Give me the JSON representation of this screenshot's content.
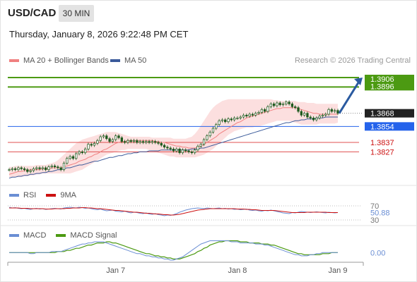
{
  "header": {
    "symbol": "USD/CAD",
    "timeframe": "30 MIN",
    "timestamp": "Thursday, January 8, 2026 9:22:48 PM CET"
  },
  "legend": {
    "ma20_label": "MA 20 + Bollinger Bands",
    "ma50_label": "MA 50",
    "credit": "Research © 2026 Trading Central"
  },
  "colors": {
    "ma20": "#f08080",
    "ma50": "#3a5a9a",
    "bollinger_fill": "#fbd9d9",
    "candle": "#1e5a1e",
    "target_line": "#4c9a12",
    "pivot_line": "#2563eb",
    "support_line": "#e05050",
    "rsi": "#6a8ed4",
    "rsi_ma": "#cc1111",
    "macd": "#6a8ed4",
    "macd_signal": "#4c9a12",
    "arrow": "#2a5aa0"
  },
  "chart_data": [
    {
      "type": "candlestick",
      "name": "price",
      "x_ticks": [
        "Jan 7",
        "Jan 8",
        "Jan 9"
      ],
      "ylim": [
        1.3795,
        1.3912
      ],
      "levels": [
        {
          "value": 1.3906,
          "label": "1.3906",
          "kind": "target"
        },
        {
          "value": 1.3896,
          "label": "1.3896",
          "kind": "target"
        },
        {
          "value": 1.3868,
          "label": "1.3868",
          "kind": "last"
        },
        {
          "value": 1.3854,
          "label": "1.3854",
          "kind": "pivot"
        },
        {
          "value": 1.3837,
          "label": "1.3837",
          "kind": "support"
        },
        {
          "value": 1.3827,
          "label": "1.3827",
          "kind": "support"
        }
      ],
      "close": [
        1.3808,
        1.3809,
        1.3808,
        1.381,
        1.3809,
        1.3808,
        1.3806,
        1.3807,
        1.3809,
        1.381,
        1.3809,
        1.381,
        1.3808,
        1.3811,
        1.3812,
        1.3811,
        1.381,
        1.3808,
        1.3815,
        1.382,
        1.3822,
        1.382,
        1.3825,
        1.3827,
        1.3826,
        1.383,
        1.3835,
        1.3834,
        1.3836,
        1.3839,
        1.3843,
        1.3844,
        1.3841,
        1.3838,
        1.384,
        1.3844,
        1.3842,
        1.3838,
        1.3837,
        1.3839,
        1.3838,
        1.3839,
        1.3837,
        1.3838,
        1.3837,
        1.3838,
        1.3837,
        1.3838,
        1.3837,
        1.3836,
        1.3834,
        1.3832,
        1.3831,
        1.383,
        1.3828,
        1.383,
        1.3826,
        1.3829,
        1.3828,
        1.3827,
        1.3826,
        1.3829,
        1.3833,
        1.3835,
        1.384,
        1.3844,
        1.3848,
        1.3852,
        1.3856,
        1.386,
        1.3861,
        1.3859,
        1.3862,
        1.3861,
        1.3863,
        1.3863,
        1.3864,
        1.3866,
        1.3865,
        1.3867,
        1.3866,
        1.3868,
        1.3869,
        1.3872,
        1.387,
        1.3875,
        1.3878,
        1.3876,
        1.3879,
        1.3877,
        1.3878,
        1.388,
        1.3878,
        1.3875,
        1.3874,
        1.387,
        1.3866,
        1.3868,
        1.3864,
        1.3863,
        1.3861,
        1.3863,
        1.3865,
        1.3866,
        1.3867,
        1.3872,
        1.387,
        1.3871,
        1.3868
      ],
      "ma20": [
        1.3803,
        1.3804,
        1.3805,
        1.3806,
        1.3806,
        1.3807,
        1.3807,
        1.3808,
        1.3808,
        1.3808,
        1.3808,
        1.3809,
        1.3809,
        1.3809,
        1.381,
        1.381,
        1.381,
        1.381,
        1.3811,
        1.3812,
        1.3813,
        1.3814,
        1.3815,
        1.3817,
        1.3818,
        1.3819,
        1.3821,
        1.3822,
        1.3824,
        1.3825,
        1.3827,
        1.3829,
        1.383,
        1.3832,
        1.3834,
        1.3836,
        1.3837,
        1.3838,
        1.3838,
        1.3839,
        1.3839,
        1.3839,
        1.3839,
        1.3839,
        1.3839,
        1.3839,
        1.3839,
        1.3839,
        1.3838,
        1.3838,
        1.3837,
        1.3837,
        1.3836,
        1.3835,
        1.3834,
        1.3833,
        1.3833,
        1.3832,
        1.3832,
        1.3831,
        1.3831,
        1.3831,
        1.3832,
        1.3833,
        1.3835,
        1.3837,
        1.3839,
        1.3841,
        1.3843,
        1.3846,
        1.3848,
        1.385,
        1.3852,
        1.3854,
        1.3856,
        1.3858,
        1.3859,
        1.3861,
        1.3863,
        1.3864,
        1.3865,
        1.3866,
        1.3867,
        1.3868,
        1.3869,
        1.387,
        1.3871,
        1.3872,
        1.3873,
        1.3873,
        1.3874,
        1.3874,
        1.3874,
        1.3874,
        1.3874,
        1.3873,
        1.3872,
        1.3871,
        1.387,
        1.3869,
        1.3868,
        1.3868,
        1.3867,
        1.3867,
        1.3867,
        1.3867,
        1.3867,
        1.3867,
        1.3867
      ],
      "ma50": [
        1.3799,
        1.38,
        1.38,
        1.3801,
        1.3801,
        1.3802,
        1.3802,
        1.3803,
        1.3803,
        1.3804,
        1.3804,
        1.3805,
        1.3805,
        1.3806,
        1.3806,
        1.3807,
        1.3808,
        1.3808,
        1.3809,
        1.381,
        1.381,
        1.3811,
        1.3812,
        1.3813,
        1.3813,
        1.3814,
        1.3815,
        1.3816,
        1.3817,
        1.3817,
        1.3818,
        1.3819,
        1.382,
        1.3821,
        1.3821,
        1.3822,
        1.3823,
        1.3823,
        1.3824,
        1.3825,
        1.3825,
        1.3826,
        1.3826,
        1.3827,
        1.3827,
        1.3827,
        1.3828,
        1.3828,
        1.3828,
        1.3828,
        1.3829,
        1.3829,
        1.3829,
        1.3829,
        1.3829,
        1.3829,
        1.3829,
        1.3829,
        1.3829,
        1.3829,
        1.383,
        1.383,
        1.383,
        1.3831,
        1.3831,
        1.3832,
        1.3833,
        1.3834,
        1.3835,
        1.3836,
        1.3837,
        1.3838,
        1.3839,
        1.384,
        1.3841,
        1.3842,
        1.3843,
        1.3844,
        1.3845,
        1.3846,
        1.3847,
        1.3848,
        1.3849,
        1.385,
        1.3851,
        1.3852,
        1.3853,
        1.3854,
        1.3855,
        1.3856,
        1.3857,
        1.3858,
        1.3858,
        1.3859,
        1.386,
        1.386,
        1.3861,
        1.3861,
        1.3862,
        1.3862,
        1.3862,
        1.3863,
        1.3863,
        1.3863,
        1.3864,
        1.3864,
        1.3864,
        1.3864,
        1.3864
      ],
      "bb_upper": [
        1.3811,
        1.3811,
        1.3812,
        1.3812,
        1.3812,
        1.3812,
        1.3812,
        1.3812,
        1.3812,
        1.3813,
        1.3813,
        1.3813,
        1.3813,
        1.3814,
        1.3815,
        1.3816,
        1.3818,
        1.3821,
        1.3824,
        1.3827,
        1.383,
        1.3833,
        1.3836,
        1.3838,
        1.384,
        1.3841,
        1.3842,
        1.3843,
        1.3844,
        1.3845,
        1.3846,
        1.3847,
        1.3848,
        1.3848,
        1.3848,
        1.3848,
        1.3847,
        1.3846,
        1.3845,
        1.3844,
        1.3843,
        1.3843,
        1.3843,
        1.3843,
        1.3843,
        1.3843,
        1.3843,
        1.3842,
        1.3842,
        1.3842,
        1.3842,
        1.3842,
        1.3842,
        1.3842,
        1.3841,
        1.3841,
        1.3841,
        1.3841,
        1.3841,
        1.3842,
        1.3843,
        1.3846,
        1.385,
        1.3855,
        1.386,
        1.3865,
        1.387,
        1.3874,
        1.3877,
        1.3879,
        1.3881,
        1.3882,
        1.3883,
        1.3883,
        1.3883,
        1.3883,
        1.3883,
        1.3883,
        1.3883,
        1.3883,
        1.3883,
        1.3883,
        1.3883,
        1.3883,
        1.3883,
        1.3883,
        1.3883,
        1.3882,
        1.3882,
        1.3881,
        1.3881,
        1.3881,
        1.3881,
        1.3881,
        1.3881,
        1.388,
        1.388,
        1.388,
        1.3879,
        1.3879,
        1.3879,
        1.3878,
        1.3878,
        1.3878,
        1.3878,
        1.3878,
        1.3878,
        1.3878,
        1.3878
      ],
      "bb_lower": [
        1.38,
        1.38,
        1.38,
        1.38,
        1.38,
        1.3801,
        1.3801,
        1.3802,
        1.3802,
        1.3803,
        1.3803,
        1.3804,
        1.3804,
        1.3804,
        1.3804,
        1.3804,
        1.3804,
        1.3804,
        1.3804,
        1.3804,
        1.3804,
        1.3805,
        1.3806,
        1.3807,
        1.3808,
        1.381,
        1.3812,
        1.3814,
        1.3816,
        1.3818,
        1.382,
        1.3822,
        1.3824,
        1.3825,
        1.3826,
        1.3827,
        1.3828,
        1.3829,
        1.3829,
        1.383,
        1.383,
        1.383,
        1.383,
        1.383,
        1.383,
        1.383,
        1.3829,
        1.3828,
        1.3827,
        1.3826,
        1.3825,
        1.3824,
        1.3823,
        1.3822,
        1.3822,
        1.3821,
        1.3821,
        1.3821,
        1.3821,
        1.3821,
        1.3821,
        1.3821,
        1.3822,
        1.3823,
        1.3824,
        1.3826,
        1.3828,
        1.383,
        1.3833,
        1.3836,
        1.3839,
        1.3842,
        1.3845,
        1.3847,
        1.3849,
        1.385,
        1.3851,
        1.3852,
        1.3853,
        1.3853,
        1.3853,
        1.3854,
        1.3854,
        1.3855,
        1.3856,
        1.3857,
        1.3858,
        1.3859,
        1.386,
        1.386,
        1.386,
        1.386,
        1.386,
        1.3859,
        1.3858,
        1.3857,
        1.3856,
        1.3856,
        1.3856,
        1.3856,
        1.3856,
        1.3856,
        1.3857,
        1.3857,
        1.3857,
        1.3857,
        1.3857,
        1.3857,
        1.3858
      ]
    },
    {
      "type": "line",
      "name": "rsi",
      "title": "RSI",
      "ylim": [
        30,
        70
      ],
      "y_ticks": [
        30,
        70
      ],
      "last_value": 50.88,
      "series": [
        {
          "name": "RSI",
          "values": [
            66,
            64,
            65,
            63,
            62,
            63,
            61,
            60,
            62,
            63,
            61,
            62,
            60,
            61,
            62,
            63,
            62,
            61,
            64,
            65,
            66,
            65,
            64,
            66,
            65,
            63,
            64,
            62,
            60,
            59,
            61,
            58,
            56,
            57,
            58,
            55,
            54,
            53,
            55,
            52,
            50,
            52,
            51,
            49,
            48,
            50,
            47,
            46,
            48,
            45,
            44,
            42,
            44,
            43,
            45,
            48,
            52,
            55,
            58,
            60,
            62,
            63,
            64,
            63,
            62,
            64,
            63,
            62,
            63,
            64,
            62,
            63,
            61,
            62,
            60,
            61,
            59,
            60,
            61,
            58,
            57,
            58,
            56,
            55,
            57,
            56,
            58,
            56,
            54,
            52,
            50,
            49,
            48,
            51,
            50,
            52,
            54,
            53,
            52,
            51,
            52,
            53,
            52,
            51,
            50,
            52,
            51,
            50,
            51
          ]
        },
        {
          "name": "9MA",
          "values": [
            64,
            64,
            64,
            64,
            63,
            63,
            63,
            62,
            62,
            62,
            62,
            62,
            61,
            61,
            61,
            62,
            62,
            62,
            62,
            63,
            63,
            64,
            64,
            64,
            65,
            65,
            64,
            64,
            63,
            62,
            62,
            61,
            60,
            59,
            58,
            57,
            57,
            56,
            55,
            54,
            53,
            52,
            52,
            51,
            50,
            49,
            49,
            48,
            47,
            47,
            46,
            45,
            45,
            44,
            44,
            45,
            46,
            48,
            50,
            52,
            54,
            56,
            58,
            59,
            60,
            61,
            62,
            62,
            62,
            62,
            62,
            62,
            62,
            62,
            62,
            61,
            61,
            61,
            60,
            60,
            59,
            59,
            58,
            57,
            57,
            57,
            57,
            57,
            56,
            55,
            54,
            53,
            52,
            51,
            51,
            51,
            51,
            51,
            52,
            52,
            52,
            52,
            52,
            52,
            52,
            51,
            51,
            51,
            51
          ]
        }
      ]
    },
    {
      "type": "line",
      "name": "macd",
      "title": "MACD",
      "last_value": 0.0,
      "y_ticks": [
        0.0
      ],
      "ylim": [
        -0.0009,
        0.0012
      ],
      "series": [
        {
          "name": "MACD",
          "values": [
            0.0,
            0.0,
            0.0,
            0.0,
            0.0,
            0.0,
            0.0,
            -0.0001,
            -0.0001,
            0.0,
            0.0,
            0.0,
            0.0,
            0.0,
            0.0001,
            0.0001,
            0.0001,
            0.0001,
            0.0002,
            0.0003,
            0.0004,
            0.0005,
            0.0006,
            0.0007,
            0.0008,
            0.0008,
            0.0009,
            0.0009,
            0.001,
            0.001,
            0.001,
            0.001,
            0.0009,
            0.0008,
            0.0007,
            0.0006,
            0.0005,
            0.0004,
            0.0003,
            0.0002,
            0.0001,
            0.0,
            -0.0001,
            -0.0001,
            -0.0002,
            -0.0003,
            -0.0003,
            -0.0004,
            -0.0004,
            -0.0005,
            -0.0005,
            -0.0006,
            -0.0006,
            -0.0007,
            -0.0007,
            -0.0006,
            -0.0005,
            -0.0004,
            -0.0002,
            0.0,
            0.0002,
            0.0004,
            0.0006,
            0.0008,
            0.0009,
            0.001,
            0.0011,
            0.0011,
            0.0011,
            0.0011,
            0.0011,
            0.0011,
            0.0011,
            0.001,
            0.001,
            0.001,
            0.0009,
            0.0009,
            0.0009,
            0.0009,
            0.0009,
            0.0008,
            0.0008,
            0.0008,
            0.0007,
            0.0007,
            0.0006,
            0.0005,
            0.0004,
            0.0003,
            0.0002,
            0.0001,
            0.0,
            -0.0001,
            -0.0002,
            -0.0002,
            -0.0003,
            -0.0003,
            -0.0003,
            -0.0002,
            -0.0002,
            -0.0001,
            -0.0001,
            0.0,
            0.0,
            0.0,
            0.0,
            0.0,
            0.0
          ]
        },
        {
          "name": "MACD Signal",
          "values": [
            0.0,
            0.0,
            0.0,
            0.0,
            0.0,
            0.0,
            0.0,
            0.0,
            0.0,
            0.0,
            0.0,
            0.0,
            0.0,
            0.0,
            0.0,
            0.0,
            0.0001,
            0.0001,
            0.0001,
            0.0002,
            0.0002,
            0.0003,
            0.0004,
            0.0004,
            0.0005,
            0.0006,
            0.0007,
            0.0007,
            0.0008,
            0.0009,
            0.0009,
            0.0009,
            0.001,
            0.001,
            0.0009,
            0.0009,
            0.0008,
            0.0007,
            0.0006,
            0.0005,
            0.0004,
            0.0003,
            0.0002,
            0.0001,
            0.0,
            -0.0001,
            -0.0001,
            -0.0002,
            -0.0003,
            -0.0003,
            -0.0004,
            -0.0004,
            -0.0005,
            -0.0005,
            -0.0006,
            -0.0006,
            -0.0006,
            -0.0005,
            -0.0004,
            -0.0003,
            -0.0002,
            -0.0001,
            0.0001,
            0.0002,
            0.0004,
            0.0005,
            0.0007,
            0.0008,
            0.0009,
            0.001,
            0.001,
            0.0011,
            0.0011,
            0.0011,
            0.0011,
            0.0011,
            0.001,
            0.001,
            0.001,
            0.0009,
            0.0009,
            0.0009,
            0.0009,
            0.0008,
            0.0008,
            0.0008,
            0.0007,
            0.0007,
            0.0006,
            0.0005,
            0.0004,
            0.0003,
            0.0002,
            0.0001,
            0.0,
            -0.0001,
            -0.0001,
            -0.0002,
            -0.0002,
            -0.0002,
            -0.0002,
            -0.0002,
            -0.0002,
            -0.0001,
            -0.0001,
            -0.0001,
            0.0,
            0.0,
            0.0
          ]
        }
      ]
    }
  ]
}
